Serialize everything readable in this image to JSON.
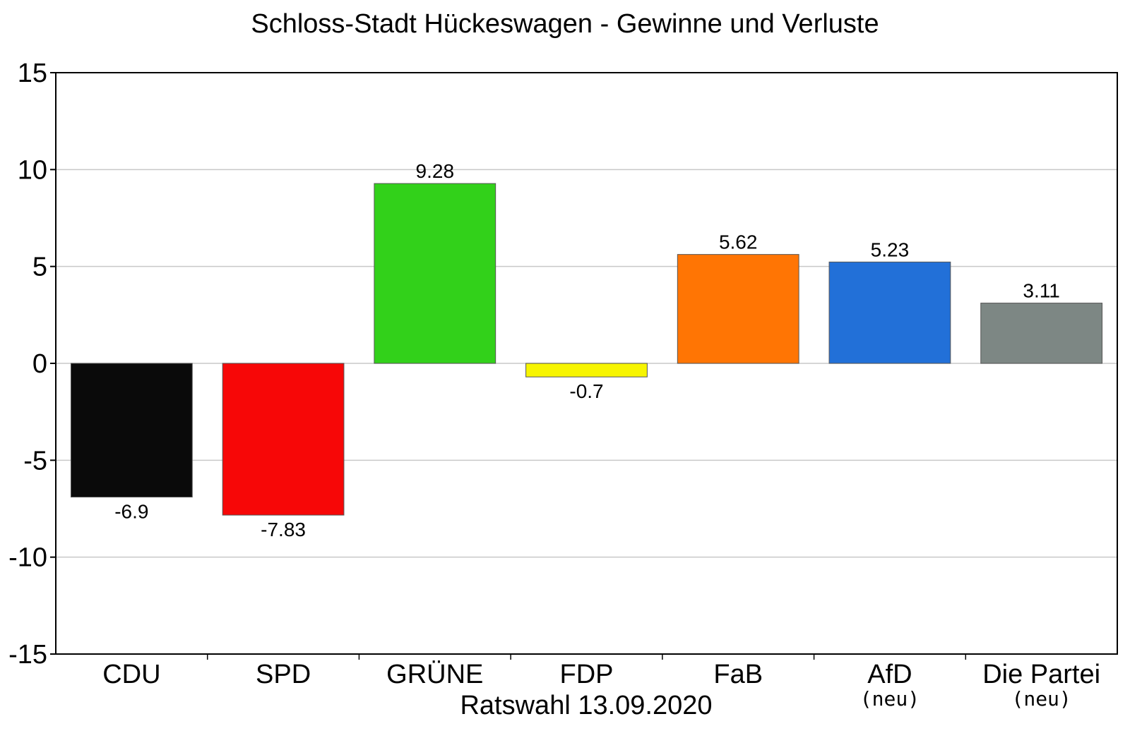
{
  "chart_data": {
    "type": "bar",
    "title": "Schloss-Stadt Hückeswagen - Gewinne und Verluste",
    "xlabel": "Ratswahl 13.09.2020",
    "ylabel": "",
    "ylim": [
      -15,
      15
    ],
    "yticks": [
      15,
      10,
      5,
      0,
      -5,
      -10,
      -15
    ],
    "grid": true,
    "categories": [
      "CDU",
      "SPD",
      "GRÜNE",
      "FDP",
      "FaB",
      "AfD",
      "Die Partei"
    ],
    "sublabels": [
      "",
      "",
      "",
      "",
      "",
      "(neu)",
      "(neu)"
    ],
    "values": [
      -6.9,
      -7.83,
      9.28,
      -0.7,
      5.62,
      5.23,
      3.11
    ],
    "value_labels": [
      "-6.9",
      "-7.83",
      "9.28",
      "-0.7",
      "5.62",
      "5.23",
      "3.11"
    ],
    "colors": [
      "#0a0a0a",
      "#f70707",
      "#32d11a",
      "#f7f502",
      "#ff7504",
      "#2270d8",
      "#7d8784"
    ]
  }
}
